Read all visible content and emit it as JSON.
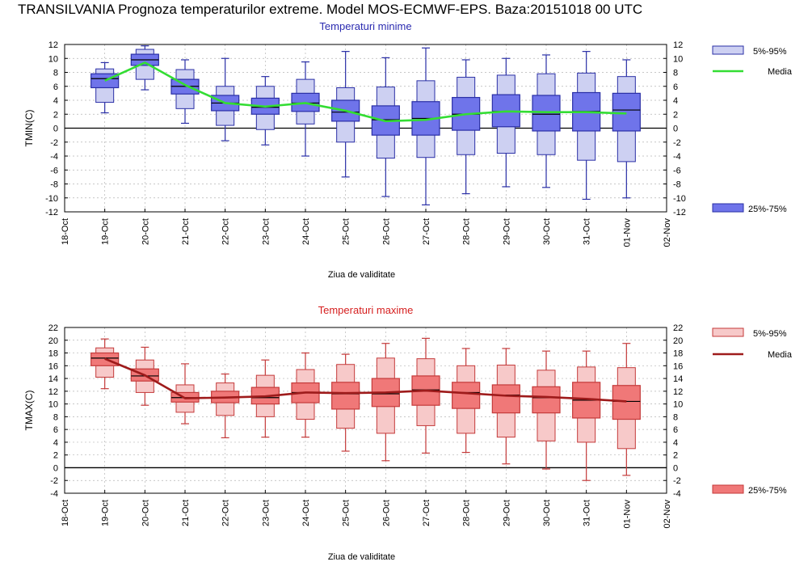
{
  "title": "TRANSILVANIA  Prognoza temperaturilor extreme.  Model MOS-ECMWF-EPS. Baza:20151018 00 UTC",
  "chart_data": [
    {
      "type": "box",
      "title": "Temperaturi minime",
      "ylabel": "TMIN(C)",
      "xlabel": "Ziua de validitate",
      "ylim": [
        -12,
        12
      ],
      "yticks": [
        -12,
        -10,
        -8,
        -6,
        -4,
        -2,
        0,
        2,
        4,
        6,
        8,
        10,
        12
      ],
      "categories": [
        "18-Oct",
        "19-Oct",
        "20-Oct",
        "21-Oct",
        "22-Oct",
        "23-Oct",
        "24-Oct",
        "25-Oct",
        "26-Oct",
        "27-Oct",
        "28-Oct",
        "29-Oct",
        "30-Oct",
        "31-Oct",
        "01-Nov",
        "02-Nov"
      ],
      "grid": true,
      "legend_position": "right",
      "legend": {
        "p5_95": "5%-95%",
        "median": "Media",
        "p25_75": "25%-75%"
      },
      "colors": {
        "outer": "#cdd0f2",
        "inner": "#6f74ea",
        "edge": "#2a2fa6",
        "line": "#33dd33",
        "title": "#2b2bb0"
      },
      "boxes": [
        {
          "day": "19-Oct",
          "min": 2.2,
          "p5": 3.7,
          "q1": 5.8,
          "median": 7.1,
          "q3": 7.8,
          "p95": 8.5,
          "max": 9.4
        },
        {
          "day": "20-Oct",
          "min": 5.5,
          "p5": 7.0,
          "q1": 9.0,
          "median": 9.8,
          "q3": 10.6,
          "p95": 11.3,
          "max": 11.8
        },
        {
          "day": "21-Oct",
          "min": 0.7,
          "p5": 2.8,
          "q1": 4.9,
          "median": 6.0,
          "q3": 7.0,
          "p95": 8.4,
          "max": 9.8
        },
        {
          "day": "22-Oct",
          "min": -1.8,
          "p5": 0.4,
          "q1": 2.5,
          "median": 3.6,
          "q3": 4.7,
          "p95": 6.0,
          "max": 10.0
        },
        {
          "day": "23-Oct",
          "min": -2.4,
          "p5": -0.2,
          "q1": 2.0,
          "median": 3.0,
          "q3": 4.3,
          "p95": 6.0,
          "max": 7.4
        },
        {
          "day": "24-Oct",
          "min": -4.0,
          "p5": 0.6,
          "q1": 2.4,
          "median": 3.6,
          "q3": 5.0,
          "p95": 7.0,
          "max": 9.5
        },
        {
          "day": "25-Oct",
          "min": -7.0,
          "p5": -2.0,
          "q1": 1.0,
          "median": 2.3,
          "q3": 4.0,
          "p95": 5.8,
          "max": 11.0
        },
        {
          "day": "26-Oct",
          "min": -9.8,
          "p5": -4.3,
          "q1": -1.0,
          "median": 1.2,
          "q3": 3.2,
          "p95": 5.9,
          "max": 10.1
        },
        {
          "day": "27-Oct",
          "min": -11.0,
          "p5": -4.2,
          "q1": -1.0,
          "median": 1.4,
          "q3": 3.8,
          "p95": 6.8,
          "max": 11.5
        },
        {
          "day": "28-Oct",
          "min": -9.4,
          "p5": -3.8,
          "q1": -0.3,
          "median": 2.0,
          "q3": 4.4,
          "p95": 7.3,
          "max": 9.8
        },
        {
          "day": "29-Oct",
          "min": -8.4,
          "p5": -3.6,
          "q1": 0.2,
          "median": 2.4,
          "q3": 4.8,
          "p95": 7.6,
          "max": 10.0
        },
        {
          "day": "30-Oct",
          "min": -8.5,
          "p5": -3.8,
          "q1": -0.4,
          "median": 2.0,
          "q3": 4.7,
          "p95": 7.8,
          "max": 10.5
        },
        {
          "day": "31-Oct",
          "min": -10.2,
          "p5": -4.6,
          "q1": -0.4,
          "median": 2.4,
          "q3": 5.1,
          "p95": 7.9,
          "max": 11.0
        },
        {
          "day": "01-Nov",
          "min": -10.0,
          "p5": -4.8,
          "q1": -0.4,
          "median": 2.6,
          "q3": 5.0,
          "p95": 7.4,
          "max": 9.8
        }
      ],
      "mean_line": [
        {
          "day": "19-Oct",
          "value": 6.8
        },
        {
          "day": "20-Oct",
          "value": 9.4
        },
        {
          "day": "21-Oct",
          "value": 6.2
        },
        {
          "day": "22-Oct",
          "value": 3.6
        },
        {
          "day": "23-Oct",
          "value": 3.1
        },
        {
          "day": "24-Oct",
          "value": 3.6
        },
        {
          "day": "25-Oct",
          "value": 2.5
        },
        {
          "day": "26-Oct",
          "value": 1.0
        },
        {
          "day": "27-Oct",
          "value": 1.2
        },
        {
          "day": "28-Oct",
          "value": 2.0
        },
        {
          "day": "29-Oct",
          "value": 2.4
        },
        {
          "day": "30-Oct",
          "value": 2.3
        },
        {
          "day": "31-Oct",
          "value": 2.3
        },
        {
          "day": "01-Nov",
          "value": 2.1
        }
      ]
    },
    {
      "type": "box",
      "title": "Temperaturi maxime",
      "ylabel": "TMAX(C)",
      "xlabel": "Ziua de validitate",
      "ylim": [
        -4,
        22
      ],
      "yticks": [
        -4,
        -2,
        0,
        2,
        4,
        6,
        8,
        10,
        12,
        14,
        16,
        18,
        20,
        22
      ],
      "categories": [
        "18-Oct",
        "19-Oct",
        "20-Oct",
        "21-Oct",
        "22-Oct",
        "23-Oct",
        "24-Oct",
        "25-Oct",
        "26-Oct",
        "27-Oct",
        "28-Oct",
        "29-Oct",
        "30-Oct",
        "31-Oct",
        "01-Nov",
        "02-Nov"
      ],
      "grid": true,
      "legend_position": "right",
      "legend": {
        "p5_95": "5%-95%",
        "median": "Media",
        "p25_75": "25%-75%"
      },
      "colors": {
        "outer": "#f7c9c9",
        "inner": "#f07878",
        "edge": "#c43a3a",
        "line": "#9e1b1b",
        "title": "#d62020"
      },
      "boxes": [
        {
          "day": "19-Oct",
          "min": 12.4,
          "p5": 14.2,
          "q1": 16.0,
          "median": 17.2,
          "q3": 18.0,
          "p95": 18.8,
          "max": 20.2
        },
        {
          "day": "20-Oct",
          "min": 9.8,
          "p5": 11.8,
          "q1": 13.6,
          "median": 14.4,
          "q3": 15.5,
          "p95": 16.9,
          "max": 18.9
        },
        {
          "day": "21-Oct",
          "min": 6.9,
          "p5": 8.7,
          "q1": 10.3,
          "median": 11.0,
          "q3": 11.8,
          "p95": 13.0,
          "max": 16.3
        },
        {
          "day": "22-Oct",
          "min": 4.7,
          "p5": 8.2,
          "q1": 10.2,
          "median": 11.0,
          "q3": 12.0,
          "p95": 13.3,
          "max": 14.7
        },
        {
          "day": "23-Oct",
          "min": 4.8,
          "p5": 8.0,
          "q1": 10.0,
          "median": 11.0,
          "q3": 12.6,
          "p95": 14.5,
          "max": 16.9
        },
        {
          "day": "24-Oct",
          "min": 4.8,
          "p5": 7.6,
          "q1": 10.2,
          "median": 11.8,
          "q3": 13.3,
          "p95": 15.4,
          "max": 18.0
        },
        {
          "day": "25-Oct",
          "min": 2.6,
          "p5": 6.2,
          "q1": 9.2,
          "median": 11.6,
          "q3": 13.4,
          "p95": 16.2,
          "max": 17.8
        },
        {
          "day": "26-Oct",
          "min": 1.1,
          "p5": 5.4,
          "q1": 9.6,
          "median": 11.6,
          "q3": 14.0,
          "p95": 17.2,
          "max": 19.5
        },
        {
          "day": "27-Oct",
          "min": 2.3,
          "p5": 6.6,
          "q1": 9.8,
          "median": 12.2,
          "q3": 14.4,
          "p95": 17.1,
          "max": 20.3
        },
        {
          "day": "28-Oct",
          "min": 2.4,
          "p5": 5.4,
          "q1": 9.3,
          "median": 11.8,
          "q3": 13.4,
          "p95": 16.0,
          "max": 18.7
        },
        {
          "day": "29-Oct",
          "min": 0.6,
          "p5": 4.8,
          "q1": 8.6,
          "median": 11.4,
          "q3": 13.0,
          "p95": 16.1,
          "max": 18.7
        },
        {
          "day": "30-Oct",
          "min": -0.2,
          "p5": 4.2,
          "q1": 8.6,
          "median": 11.0,
          "q3": 12.7,
          "p95": 15.3,
          "max": 18.3
        },
        {
          "day": "31-Oct",
          "min": -2.0,
          "p5": 4.0,
          "q1": 7.8,
          "median": 10.6,
          "q3": 13.4,
          "p95": 15.8,
          "max": 18.3
        },
        {
          "day": "01-Nov",
          "min": -1.2,
          "p5": 3.0,
          "q1": 7.6,
          "median": 10.4,
          "q3": 12.9,
          "p95": 15.7,
          "max": 19.5
        }
      ],
      "mean_line": [
        {
          "day": "19-Oct",
          "value": 17.1
        },
        {
          "day": "20-Oct",
          "value": 14.5
        },
        {
          "day": "21-Oct",
          "value": 10.9
        },
        {
          "day": "22-Oct",
          "value": 11.0
        },
        {
          "day": "23-Oct",
          "value": 11.2
        },
        {
          "day": "24-Oct",
          "value": 11.8
        },
        {
          "day": "25-Oct",
          "value": 11.7
        },
        {
          "day": "26-Oct",
          "value": 11.8
        },
        {
          "day": "27-Oct",
          "value": 12.1
        },
        {
          "day": "28-Oct",
          "value": 11.7
        },
        {
          "day": "29-Oct",
          "value": 11.3
        },
        {
          "day": "30-Oct",
          "value": 11.1
        },
        {
          "day": "31-Oct",
          "value": 10.8
        },
        {
          "day": "01-Nov",
          "value": 10.4
        }
      ]
    }
  ]
}
